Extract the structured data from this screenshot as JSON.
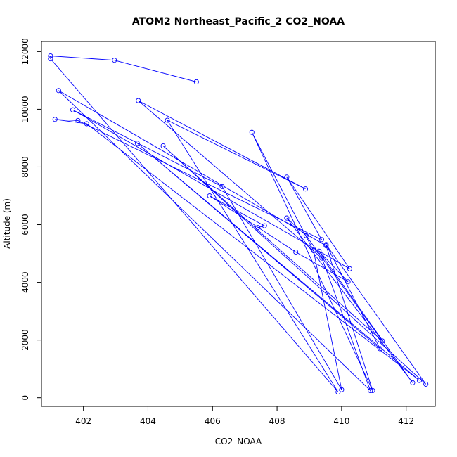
{
  "chart_data": {
    "type": "line",
    "title": "ATOM2 Northeast_Pacific_2 CO2_NOAA",
    "xlabel": "CO2_NOAA",
    "ylabel": "Altitude (m)",
    "xlim": [
      400.7,
      412.9
    ],
    "ylim": [
      -300,
      12350
    ],
    "x_ticks": [
      402,
      404,
      406,
      408,
      410,
      412
    ],
    "y_ticks": [
      0,
      2000,
      4000,
      6000,
      8000,
      10000,
      12000
    ],
    "x_tick_labels": [
      "402",
      "404",
      "406",
      "408",
      "410",
      "412"
    ],
    "y_tick_labels": [
      "0",
      "2000",
      "4000",
      "6000",
      "8000",
      "10000",
      "12000"
    ],
    "grid": false,
    "legend": "none",
    "line_color": "#0000ff",
    "marker": "open-circle",
    "points": [
      {
        "x": 405.5,
        "y": 10950
      },
      {
        "x": 402.96,
        "y": 11700
      },
      {
        "x": 400.98,
        "y": 11850
      },
      {
        "x": 400.98,
        "y": 11750
      },
      {
        "x": 409.89,
        "y": 200
      },
      {
        "x": 404.6,
        "y": 9620
      },
      {
        "x": 408.88,
        "y": 7240
      },
      {
        "x": 403.7,
        "y": 10300
      },
      {
        "x": 409.39,
        "y": 4840
      },
      {
        "x": 410.89,
        "y": 250
      },
      {
        "x": 401.23,
        "y": 10650
      },
      {
        "x": 409.52,
        "y": 5270
      },
      {
        "x": 410.96,
        "y": 250
      },
      {
        "x": 407.22,
        "y": 9200
      },
      {
        "x": 409.13,
        "y": 5100
      },
      {
        "x": 410.0,
        "y": 280
      },
      {
        "x": 406.3,
        "y": 7320
      },
      {
        "x": 401.67,
        "y": 9980
      },
      {
        "x": 410.25,
        "y": 4470
      },
      {
        "x": 408.3,
        "y": 7650
      },
      {
        "x": 409.38,
        "y": 5480
      },
      {
        "x": 401.83,
        "y": 9610
      },
      {
        "x": 401.12,
        "y": 9650
      },
      {
        "x": 402.1,
        "y": 9500
      },
      {
        "x": 412.41,
        "y": 600
      },
      {
        "x": 403.67,
        "y": 8820
      },
      {
        "x": 411.19,
        "y": 1700
      },
      {
        "x": 409.52,
        "y": 5310
      },
      {
        "x": 412.61,
        "y": 470
      },
      {
        "x": 404.47,
        "y": 8730
      },
      {
        "x": 411.26,
        "y": 1970
      },
      {
        "x": 408.9,
        "y": 5620
      },
      {
        "x": 408.3,
        "y": 6230
      },
      {
        "x": 412.2,
        "y": 520
      },
      {
        "x": 409.3,
        "y": 5080
      },
      {
        "x": 410.2,
        "y": 4020
      },
      {
        "x": 408.58,
        "y": 5050
      },
      {
        "x": 405.91,
        "y": 7000
      },
      {
        "x": 407.61,
        "y": 5960
      },
      {
        "x": 407.4,
        "y": 5900
      }
    ]
  }
}
